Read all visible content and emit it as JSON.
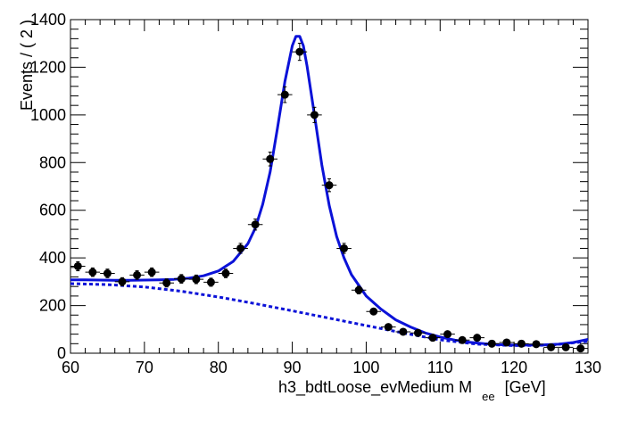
{
  "chart_data": {
    "type": "scatter",
    "ylabel": "Events / ( 2 )",
    "xlabel_main": "h3_bdtLoose_evMedium  M",
    "xlabel_sub": "ee",
    "xlabel_unit": "[GeV]",
    "xlim": [
      60,
      130
    ],
    "ylim": [
      0,
      1400
    ],
    "x_ticks": [
      60,
      70,
      80,
      90,
      100,
      110,
      120,
      130
    ],
    "y_ticks": [
      0,
      200,
      400,
      600,
      800,
      1000,
      1200,
      1400
    ],
    "x_bin_halfwidth": 1,
    "series": [
      {
        "kind": "data-points",
        "color": "#000000",
        "x": [
          61,
          63,
          65,
          67,
          69,
          71,
          73,
          75,
          77,
          79,
          81,
          83,
          85,
          87,
          89,
          91,
          93,
          95,
          97,
          99,
          101,
          103,
          105,
          107,
          109,
          111,
          113,
          115,
          117,
          119,
          121,
          123,
          125,
          127,
          129
        ],
        "y": [
          365,
          340,
          335,
          300,
          328,
          340,
          295,
          312,
          310,
          298,
          335,
          440,
          540,
          815,
          1085,
          1265,
          1000,
          705,
          440,
          265,
          175,
          110,
          90,
          85,
          65,
          80,
          55,
          65,
          40,
          45,
          40,
          38,
          25,
          25,
          20
        ],
        "yerr": [
          19,
          18,
          18,
          17,
          18,
          18,
          17,
          18,
          18,
          17,
          18,
          21,
          23,
          29,
          33,
          36,
          32,
          27,
          21,
          16,
          13,
          10,
          9,
          9,
          8,
          9,
          7,
          8,
          6,
          7,
          6,
          6,
          5,
          5,
          4
        ]
      },
      {
        "kind": "total-fit",
        "color": "#0b12d8",
        "style": "solid",
        "x": [
          60,
          62,
          64,
          66,
          68,
          70,
          72,
          74,
          76,
          78,
          80,
          82,
          84,
          85,
          86,
          87,
          88,
          89,
          90,
          90.5,
          91,
          91.5,
          92,
          93,
          94,
          95,
          96,
          97,
          98,
          100,
          102,
          104,
          106,
          108,
          110,
          112,
          114,
          116,
          118,
          120,
          122,
          124,
          126,
          128,
          130
        ],
        "y": [
          308,
          308,
          307,
          306,
          306,
          307,
          308,
          310,
          315,
          325,
          345,
          385,
          460,
          525,
          625,
          760,
          945,
          1140,
          1290,
          1330,
          1330,
          1290,
          1205,
          1000,
          790,
          620,
          490,
          400,
          330,
          240,
          185,
          140,
          110,
          85,
          68,
          55,
          46,
          40,
          36,
          34,
          34,
          35,
          38,
          45,
          58
        ]
      },
      {
        "kind": "background-fit",
        "color": "#0b12d8",
        "style": "dashed",
        "x": [
          60,
          65,
          70,
          75,
          80,
          85,
          90,
          95,
          100,
          105,
          110,
          115,
          120,
          125,
          130
        ],
        "y": [
          292,
          288,
          278,
          260,
          236,
          208,
          178,
          147,
          116,
          85,
          56,
          38,
          32,
          34,
          50
        ]
      }
    ]
  }
}
